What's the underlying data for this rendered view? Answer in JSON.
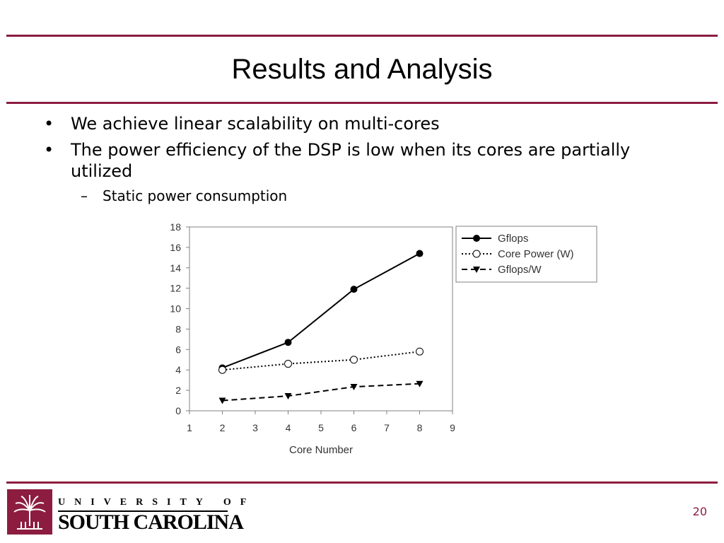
{
  "slide": {
    "title": "Results and Analysis",
    "bullets": [
      {
        "marker": "•",
        "text": "We achieve linear scalability on multi-cores"
      },
      {
        "marker": "•",
        "text": "The power efficiency of the DSP is low when its cores are partially utilized"
      }
    ],
    "sub_bullets": [
      {
        "marker": "–",
        "text": "Static power consumption"
      }
    ],
    "page_number": "20"
  },
  "logo": {
    "line1": "UNIVERSITY OF",
    "line2": "SOUTH CAROLINA",
    "color": "#8c1d40"
  },
  "chart_data": {
    "type": "line",
    "title": "",
    "xlabel": "Core Number",
    "ylabel": "",
    "xlim": [
      1,
      9
    ],
    "ylim": [
      0,
      18
    ],
    "xticks": [
      1,
      2,
      3,
      4,
      5,
      6,
      7,
      8,
      9
    ],
    "yticks": [
      0,
      2,
      4,
      6,
      8,
      10,
      12,
      14,
      16,
      18
    ],
    "grid": false,
    "legend": "right",
    "series": [
      {
        "name": "Gflops",
        "x": [
          2,
          4,
          6,
          8
        ],
        "y": [
          4.2,
          6.7,
          11.9,
          15.4
        ],
        "line": "solid",
        "marker": "filled-circle"
      },
      {
        "name": "Core Power (W)",
        "x": [
          2,
          4,
          6,
          8
        ],
        "y": [
          4.0,
          4.6,
          5.0,
          5.8
        ],
        "line": "dotted",
        "marker": "open-circle"
      },
      {
        "name": "Gflops/W",
        "x": [
          2,
          4,
          6,
          8
        ],
        "y": [
          1.0,
          1.45,
          2.35,
          2.65
        ],
        "line": "dashed",
        "marker": "filled-triangle-down"
      }
    ]
  }
}
